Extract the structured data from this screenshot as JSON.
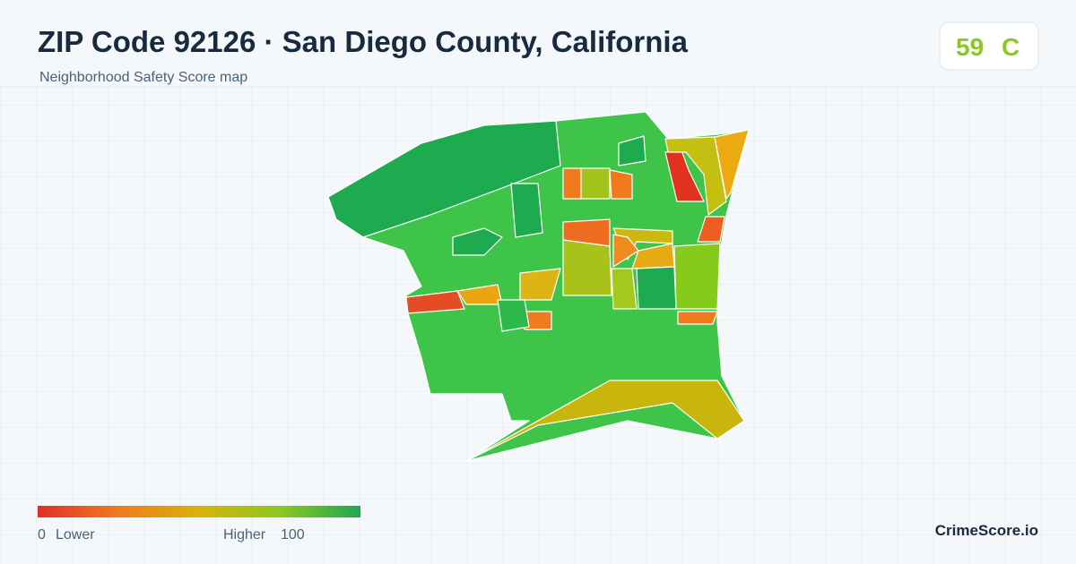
{
  "header": {
    "title": "ZIP Code 92126 · San Diego County, California",
    "subtitle": "Neighborhood Safety Score map"
  },
  "score": {
    "value": "59",
    "grade": "C"
  },
  "legend": {
    "min": "0",
    "min_label": "Lower",
    "max_label": "Higher",
    "max": "100"
  },
  "brand": "CrimeScore.io"
}
